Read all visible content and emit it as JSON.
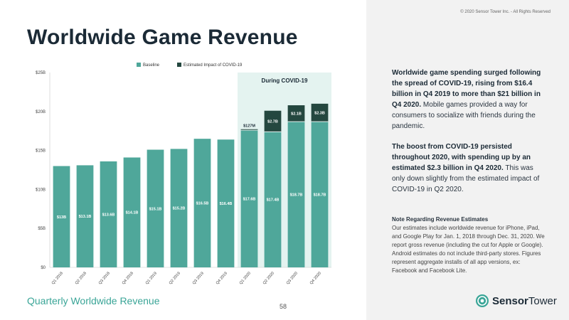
{
  "copyright": "© 2020 Sensor Tower Inc. - All Rights Reserved",
  "title": "Worldwide Game Revenue",
  "subtitle": "Quarterly Worldwide Revenue",
  "page_number": "58",
  "colors": {
    "baseline": "#4fa79a",
    "impact": "#24473f",
    "covid_band": "#e4f3f0",
    "accent": "#3aa597"
  },
  "summary": {
    "p1_bold": "Worldwide game spending surged following the spread of COVID-19, rising from $16.4 billion in Q4 2019 to more than $21 billion in Q4 2020.",
    "p1_rest": " Mobile games provided a way for consumers to socialize with friends during the pandemic.",
    "p2_bold": "The boost from COVID-19 persisted throughout 2020, with spending up by an estimated $2.3 billion in Q4 2020.",
    "p2_rest": " This was only down slightly from the estimated impact of COVID-19 in Q2 2020."
  },
  "note": {
    "title": "Note Regarding Revenue Estimates",
    "text": "Our estimates include worldwide revenue for iPhone, iPad, and Google Play for Jan. 1, 2018 through Dec. 31, 2020. We report gross revenue (including the cut for Apple or Google). Android estimates do not include third-party stores. Figures represent aggregate installs of all app versions, ex: Facebook and Facebook Lite."
  },
  "logo": {
    "name_bold": "Sensor",
    "name_rest": "Tower",
    "icon": "sensor-tower-logo-icon"
  },
  "chart_data": {
    "type": "bar",
    "stacked": true,
    "categories": [
      "Q1 2018",
      "Q2 2018",
      "Q3 2018",
      "Q4 2018",
      "Q1 2019",
      "Q2 2019",
      "Q3 2019",
      "Q4 2019",
      "Q1 2020",
      "Q2 2020",
      "Q3 2020",
      "Q4 2020"
    ],
    "series": [
      {
        "name": "Baseline",
        "values": [
          13.0,
          13.1,
          13.6,
          14.1,
          15.1,
          15.2,
          16.5,
          16.4,
          17.6,
          17.4,
          18.7,
          18.7
        ],
        "labels": [
          "$13B",
          "$13.1B",
          "$13.6B",
          "$14.1B",
          "$15.1B",
          "$15.2B",
          "$16.5B",
          "$16.4B",
          "$17.6B",
          "$17.4B",
          "$18.7B",
          "$18.7B"
        ]
      },
      {
        "name": "Estimated Impact of COVID-19",
        "values": [
          0,
          0,
          0,
          0,
          0,
          0,
          0,
          0,
          0.127,
          2.7,
          2.1,
          2.3
        ],
        "labels": [
          "",
          "",
          "",
          "",
          "",
          "",
          "",
          "",
          "$127M",
          "$2.7B",
          "$2.1B",
          "$2.3B"
        ]
      }
    ],
    "yticks": [
      0,
      5,
      10,
      15,
      20,
      25
    ],
    "ytick_labels": [
      "$0",
      "$5B",
      "$10B",
      "$15B",
      "$20B",
      "$25B"
    ],
    "ylim": [
      0,
      25
    ],
    "legend_position": "top",
    "annotation": {
      "text": "During COVID-19",
      "from_category": "Q1 2020",
      "to_category": "Q4 2020"
    },
    "grid": false
  }
}
